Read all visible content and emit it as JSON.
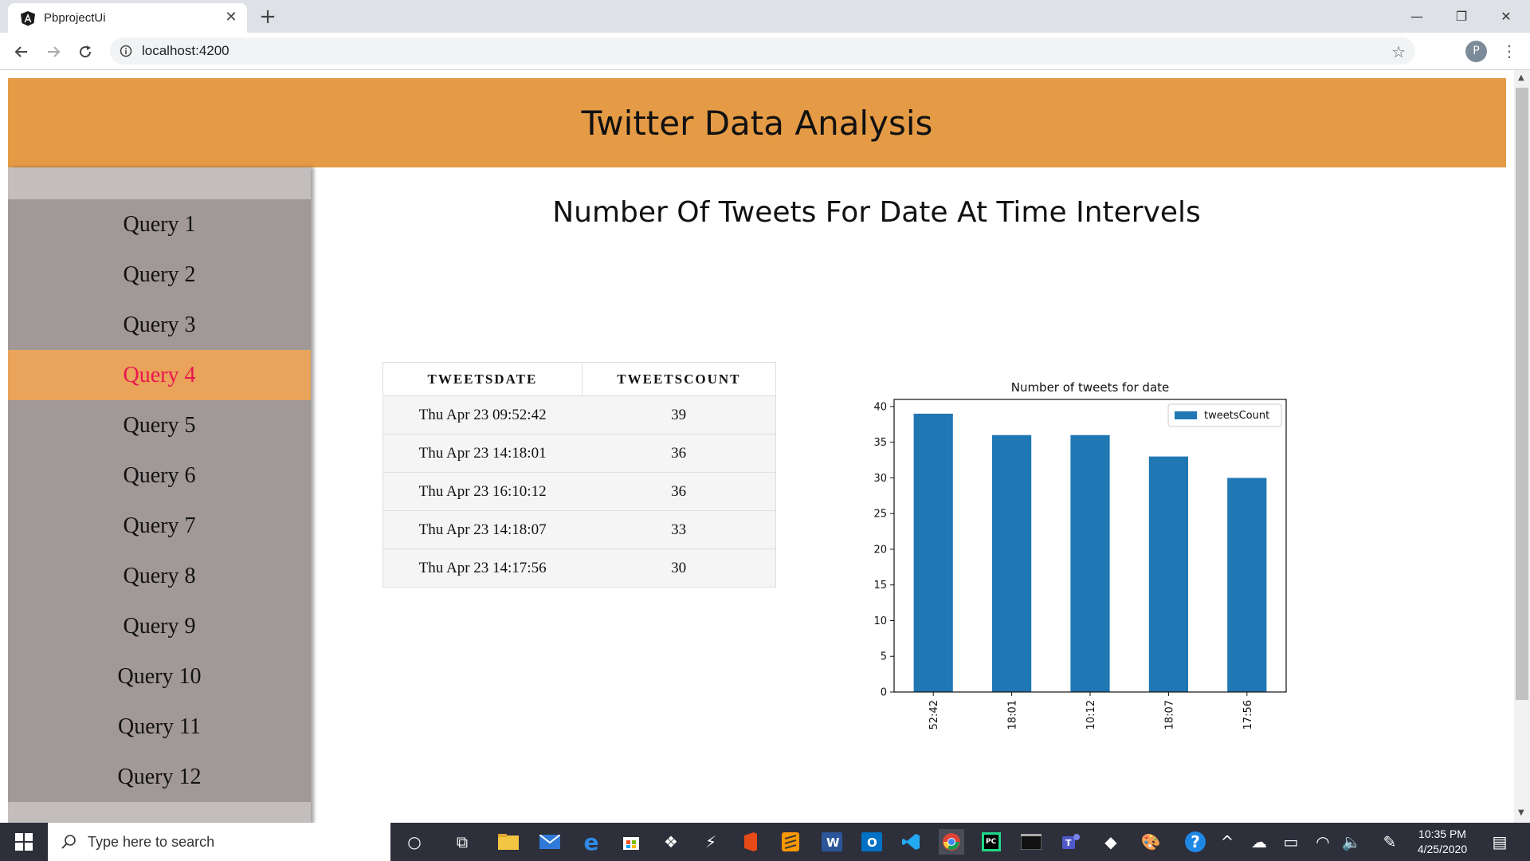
{
  "browser": {
    "tab_title": "PbprojectUi",
    "url": "localhost:4200",
    "profile_initial": "P"
  },
  "page": {
    "header_title": "Twitter Data Analysis",
    "content_title": "Number Of Tweets For Date At Time Intervels"
  },
  "sidebar": {
    "items": [
      {
        "label": "Query 1"
      },
      {
        "label": "Query 2"
      },
      {
        "label": "Query 3"
      },
      {
        "label": "Query 4",
        "active": true
      },
      {
        "label": "Query 5"
      },
      {
        "label": "Query 6"
      },
      {
        "label": "Query 7"
      },
      {
        "label": "Query 8"
      },
      {
        "label": "Query 9"
      },
      {
        "label": "Query 10"
      },
      {
        "label": "Query 11"
      },
      {
        "label": "Query 12"
      }
    ]
  },
  "table": {
    "columns": [
      "TWEETSDATE",
      "TWEETSCOUNT"
    ],
    "rows": [
      [
        "Thu Apr 23 09:52:42",
        "39"
      ],
      [
        "Thu Apr 23 14:18:01",
        "36"
      ],
      [
        "Thu Apr 23 16:10:12",
        "36"
      ],
      [
        "Thu Apr 23 14:18:07",
        "33"
      ],
      [
        "Thu Apr 23 14:17:56",
        "30"
      ]
    ]
  },
  "chart_data": {
    "type": "bar",
    "title": "Number of tweets for date",
    "categories": [
      "52:42",
      "18:01",
      "10:12",
      "18:07",
      "17:56"
    ],
    "series": [
      {
        "name": "tweetsCount",
        "values": [
          39,
          36,
          36,
          33,
          30
        ],
        "color": "#1f77b4"
      }
    ],
    "xlabel": "",
    "ylabel": "",
    "ylim": [
      0,
      41
    ],
    "yticks": [
      0,
      5,
      10,
      15,
      20,
      25,
      30,
      35,
      40
    ],
    "grid": false,
    "legend": "top-right"
  },
  "taskbar": {
    "search_placeholder": "Type here to search",
    "time": "10:35 PM",
    "date": "4/25/2020"
  },
  "colors": {
    "header": "#e59b46",
    "sidebar": "#a19998",
    "active_item": "#e9a35a",
    "active_text": "#e8174f",
    "bar": "#1f77b4"
  }
}
